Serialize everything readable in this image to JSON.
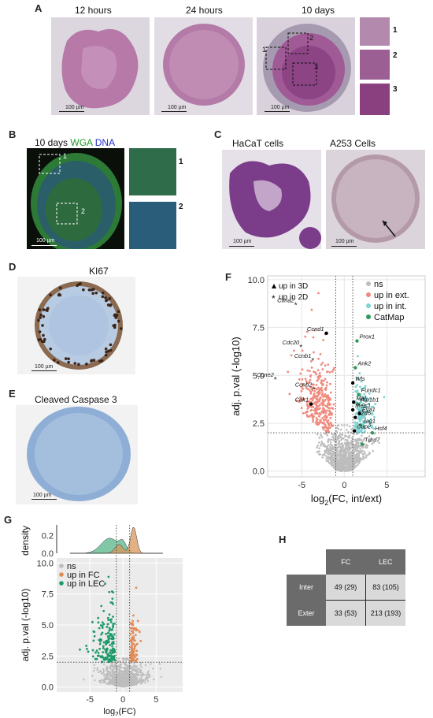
{
  "panels": {
    "A": {
      "label": "A",
      "titles": [
        "12 hours",
        "24 hours",
        "10 days"
      ],
      "insets": [
        "1",
        "2",
        "3"
      ],
      "boxes": [
        "1",
        "2",
        "3"
      ],
      "scale": "100 µm"
    },
    "B": {
      "label": "B",
      "title_prefix": "10 days ",
      "wga": "WGA",
      "dna": "DNA",
      "boxes": [
        "1",
        "2"
      ],
      "insets": [
        "1",
        "2"
      ],
      "scale": "100 µm"
    },
    "C": {
      "label": "C",
      "titles": [
        "HaCaT cells",
        "A253 Cells"
      ],
      "scale": "100 µm"
    },
    "D": {
      "label": "D",
      "title": "KI67",
      "scale": "100 µm"
    },
    "E": {
      "label": "E",
      "title": "Cleaved Caspase 3",
      "scale": "100 µm"
    },
    "F": {
      "label": "F"
    },
    "G": {
      "label": "G"
    },
    "H": {
      "label": "H"
    }
  },
  "chart_data": [
    {
      "type": "scatter",
      "panel": "F",
      "xlabel_main": "log",
      "xlabel_sub": "2",
      "xlabel_rest": "(FC, int/ext)",
      "ylabel": "adj. p.val (-log10)",
      "xlim": [
        -9,
        9.5
      ],
      "ylim": [
        -0.3,
        10.2
      ],
      "xticks": [
        -5,
        0,
        5
      ],
      "yticks": [
        0.0,
        2.5,
        5.0,
        7.5,
        10.0
      ],
      "xtick_labels": [
        "-5",
        "0",
        "5"
      ],
      "ytick_labels": [
        "0.0",
        "2.5",
        "5.0",
        "7.5",
        "10.0"
      ],
      "thresholds": {
        "x": [
          -1,
          1
        ],
        "y": 2.0
      },
      "legend_shapes": [
        "up in 3D",
        "up in 2D"
      ],
      "legend_groups": [
        "ns",
        "up in ext.",
        "up in int.",
        "CatMap"
      ],
      "colors": {
        "ns": "#bdbdbd",
        "ext": "#f08a7e",
        "int": "#7fd3d3",
        "catmap": "#2e9a5a",
        "label": "#000000"
      },
      "grid": true,
      "legend_position": "top",
      "labeled_genes": [
        {
          "gene": "Ccna2",
          "x": -5.6,
          "y": 8.7,
          "group": "up in 2D"
        },
        {
          "gene": "Ccnd1",
          "x": -2.1,
          "y": 7.2,
          "group": "up in 3D"
        },
        {
          "gene": "Cdc20",
          "x": -5.0,
          "y": 6.5,
          "group": "up in 2D"
        },
        {
          "gene": "Ccnb1",
          "x": -3.6,
          "y": 5.8,
          "group": "up in 2D"
        },
        {
          "gene": "Ccne2",
          "x": -8.0,
          "y": 4.8,
          "group": "up in 2D"
        },
        {
          "gene": "Ccnb2",
          "x": -3.5,
          "y": 4.3,
          "group": "up in 2D"
        },
        {
          "gene": "Cdk1",
          "x": -3.9,
          "y": 3.5,
          "group": "up in 3D"
        },
        {
          "gene": "Prox1",
          "x": 1.5,
          "y": 6.8,
          "group": "CatMap"
        },
        {
          "gene": "Ank2",
          "x": 1.3,
          "y": 5.4,
          "group": "CatMap"
        },
        {
          "gene": "Wls",
          "x": 1.0,
          "y": 4.6,
          "group": "up in 3D"
        },
        {
          "gene": "Fundc1",
          "x": 1.7,
          "y": 4.0,
          "group": "CatMap"
        },
        {
          "gene": "Maf",
          "x": 1.1,
          "y": 3.6,
          "group": "up in 3D"
        },
        {
          "gene": "Atp1b1",
          "x": 1.6,
          "y": 3.5,
          "group": "CatMap"
        },
        {
          "gene": "Meis1",
          "x": 1.0,
          "y": 3.2,
          "group": "up in 3D"
        },
        {
          "gene": "Eya1",
          "x": 1.8,
          "y": 3.0,
          "group": "up in 3D"
        },
        {
          "gene": "Fzd6",
          "x": 1.3,
          "y": 2.8,
          "group": "up in 3D"
        },
        {
          "gene": "Jag1",
          "x": 1.9,
          "y": 2.4,
          "group": "CatMap"
        },
        {
          "gene": "Cap2",
          "x": 1.2,
          "y": 2.1,
          "group": "up in 3D"
        },
        {
          "gene": "Hsf4",
          "x": 3.3,
          "y": 2.0,
          "group": "CatMap"
        },
        {
          "gene": "Tdrd7",
          "x": 2.1,
          "y": 1.4,
          "group": "CatMap"
        }
      ]
    },
    {
      "type": "scatter",
      "panel": "G",
      "xlabel_main": "log",
      "xlabel_sub": "2",
      "xlabel_rest": "(FC)",
      "ylabel": "adj. p.val (-log10)",
      "density_label": "density",
      "xlim": [
        -10,
        9
      ],
      "ylim": [
        -0.4,
        10.4
      ],
      "xticks": [
        -5,
        0,
        5
      ],
      "yticks": [
        0.0,
        2.5,
        5.0,
        7.5,
        10.0
      ],
      "xtick_labels": [
        "-5",
        "0",
        "5"
      ],
      "ytick_labels": [
        "0.0",
        "2.5",
        "5.0",
        "7.5",
        "10.0"
      ],
      "density_yticks": [
        0.0,
        0.2
      ],
      "density_ytick_labels": [
        "0.0",
        "0.2"
      ],
      "thresholds": {
        "x": [
          -1,
          1
        ],
        "y": 2.0
      },
      "legend": [
        "ns",
        "up in FC",
        "up in LEC"
      ],
      "colors": {
        "ns": "#bdbdbd",
        "FC": "#e08a55",
        "LEC": "#1f9a6a",
        "density_FC": "#d9955a",
        "density_LEC": "#57b58a"
      },
      "grid": true,
      "legend_position": "top-left"
    }
  ],
  "table_H": {
    "columns": [
      "FC",
      "LEC"
    ],
    "rows": [
      {
        "label": "Inter",
        "values": [
          "49 (29)",
          "83 (105)"
        ]
      },
      {
        "label": "Exter",
        "values": [
          "33 (53)",
          "213 (193)"
        ]
      }
    ]
  }
}
